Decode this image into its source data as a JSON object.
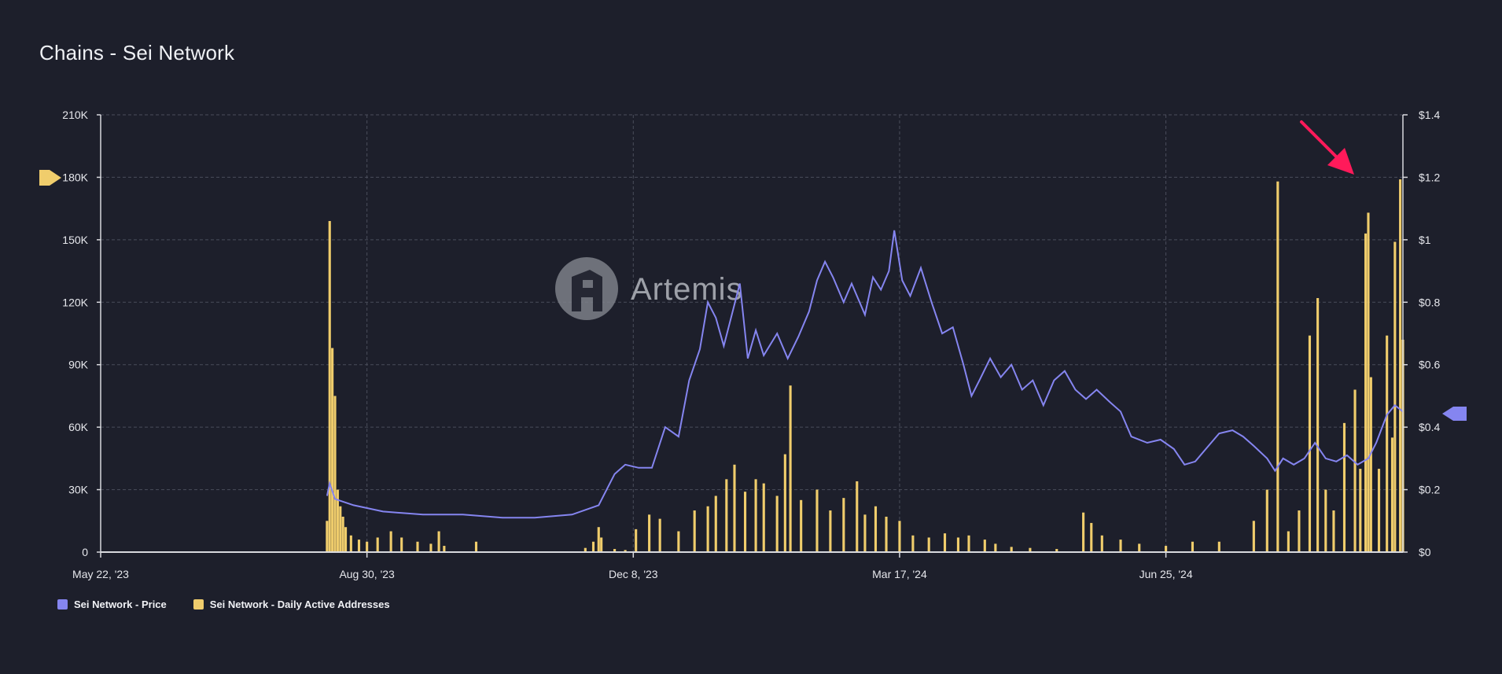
{
  "page": {
    "title": "Chains - Sei Network"
  },
  "colors": {
    "background": "#1d1f2b",
    "price_line": "#8585f0",
    "bars": "#f0cd6c",
    "grid": "#4a4d5b",
    "annotation_arrow": "#ff1a5a"
  },
  "watermark": {
    "text": "Artemis"
  },
  "legend": [
    {
      "label": "Sei Network - Price",
      "color": "#8585f0",
      "icon": "square-swatch"
    },
    {
      "label": "Sei Network - Daily Active Addresses",
      "color": "#f0cd6c",
      "icon": "square-swatch"
    }
  ],
  "chart_data": {
    "type": "bar",
    "title": "Chains - Sei Network",
    "x_axis": {
      "ticks": [
        "May 22, '23",
        "Aug 30, '23",
        "Dec 8, '23",
        "Mar 17, '24",
        "Jun 25, '24"
      ],
      "range": [
        "2023-05-22",
        "2024-09-22"
      ]
    },
    "y_left": {
      "ticks": [
        "0",
        "30K",
        "60K",
        "90K",
        "120K",
        "150K",
        "180K",
        "210K"
      ],
      "range": [
        0,
        210000
      ],
      "gridlines": true
    },
    "y_right": {
      "ticks": [
        "$0",
        "$0.2",
        "$0.4",
        "$0.6",
        "$0.8",
        "$1",
        "$1.2",
        "$1.4"
      ],
      "range": [
        0,
        1.4
      ]
    },
    "legend_position": "bottom-left",
    "series": [
      {
        "name": "Sei Network - Daily Active Addresses",
        "type": "bar",
        "axis": "left",
        "points": [
          [
            "2023-08-15",
            15000
          ],
          [
            "2023-08-16",
            159000
          ],
          [
            "2023-08-17",
            98000
          ],
          [
            "2023-08-18",
            75000
          ],
          [
            "2023-08-19",
            30000
          ],
          [
            "2023-08-20",
            22000
          ],
          [
            "2023-08-21",
            17000
          ],
          [
            "2023-08-22",
            12000
          ],
          [
            "2023-08-24",
            8000
          ],
          [
            "2023-08-27",
            6000
          ],
          [
            "2023-08-30",
            5000
          ],
          [
            "2023-09-03",
            7000
          ],
          [
            "2023-09-08",
            10000
          ],
          [
            "2023-09-12",
            7000
          ],
          [
            "2023-09-18",
            5000
          ],
          [
            "2023-09-23",
            4000
          ],
          [
            "2023-09-26",
            10000
          ],
          [
            "2023-09-28",
            3000
          ],
          [
            "2023-10-10",
            5000
          ],
          [
            "2023-11-20",
            2000
          ],
          [
            "2023-11-23",
            5000
          ],
          [
            "2023-11-25",
            12000
          ],
          [
            "2023-11-26",
            7000
          ],
          [
            "2023-12-01",
            1500
          ],
          [
            "2023-12-05",
            1000
          ],
          [
            "2023-12-09",
            11000
          ],
          [
            "2023-12-14",
            18000
          ],
          [
            "2023-12-18",
            16000
          ],
          [
            "2023-12-25",
            10000
          ],
          [
            "2023-12-31",
            20000
          ],
          [
            "2024-01-05",
            22000
          ],
          [
            "2024-01-08",
            27000
          ],
          [
            "2024-01-12",
            35000
          ],
          [
            "2024-01-15",
            42000
          ],
          [
            "2024-01-19",
            29000
          ],
          [
            "2024-01-23",
            35000
          ],
          [
            "2024-01-26",
            33000
          ],
          [
            "2024-01-31",
            27000
          ],
          [
            "2024-02-03",
            47000
          ],
          [
            "2024-02-05",
            80000
          ],
          [
            "2024-02-09",
            25000
          ],
          [
            "2024-02-15",
            30000
          ],
          [
            "2024-02-20",
            20000
          ],
          [
            "2024-02-25",
            26000
          ],
          [
            "2024-03-01",
            34000
          ],
          [
            "2024-03-04",
            18000
          ],
          [
            "2024-03-08",
            22000
          ],
          [
            "2024-03-12",
            17000
          ],
          [
            "2024-03-17",
            15000
          ],
          [
            "2024-03-22",
            8000
          ],
          [
            "2024-03-28",
            7000
          ],
          [
            "2024-04-03",
            9000
          ],
          [
            "2024-04-08",
            7000
          ],
          [
            "2024-04-12",
            8000
          ],
          [
            "2024-04-18",
            6000
          ],
          [
            "2024-04-22",
            4000
          ],
          [
            "2024-04-28",
            2500
          ],
          [
            "2024-05-05",
            2000
          ],
          [
            "2024-05-15",
            1500
          ],
          [
            "2024-05-25",
            19000
          ],
          [
            "2024-05-28",
            14000
          ],
          [
            "2024-06-01",
            8000
          ],
          [
            "2024-06-08",
            6000
          ],
          [
            "2024-06-15",
            4000
          ],
          [
            "2024-06-25",
            3000
          ],
          [
            "2024-07-05",
            5000
          ],
          [
            "2024-07-15",
            5000
          ],
          [
            "2024-07-28",
            15000
          ],
          [
            "2024-08-02",
            30000
          ],
          [
            "2024-08-06",
            178000
          ],
          [
            "2024-08-10",
            10000
          ],
          [
            "2024-08-14",
            20000
          ],
          [
            "2024-08-18",
            104000
          ],
          [
            "2024-08-21",
            122000
          ],
          [
            "2024-08-24",
            30000
          ],
          [
            "2024-08-27",
            20000
          ],
          [
            "2024-08-31",
            62000
          ],
          [
            "2024-09-04",
            78000
          ],
          [
            "2024-09-06",
            40000
          ],
          [
            "2024-09-08",
            153000
          ],
          [
            "2024-09-09",
            163000
          ],
          [
            "2024-09-10",
            84000
          ],
          [
            "2024-09-13",
            40000
          ],
          [
            "2024-09-16",
            104000
          ],
          [
            "2024-09-18",
            55000
          ],
          [
            "2024-09-19",
            149000
          ],
          [
            "2024-09-21",
            179000
          ],
          [
            "2024-09-22",
            102000
          ]
        ]
      },
      {
        "name": "Sei Network - Price",
        "type": "line",
        "axis": "right",
        "points": [
          [
            "2023-08-15",
            0.18
          ],
          [
            "2023-08-16",
            0.22
          ],
          [
            "2023-08-18",
            0.17
          ],
          [
            "2023-08-25",
            0.15
          ],
          [
            "2023-09-05",
            0.13
          ],
          [
            "2023-09-20",
            0.12
          ],
          [
            "2023-10-05",
            0.12
          ],
          [
            "2023-10-20",
            0.11
          ],
          [
            "2023-11-01",
            0.11
          ],
          [
            "2023-11-15",
            0.12
          ],
          [
            "2023-11-25",
            0.15
          ],
          [
            "2023-12-01",
            0.25
          ],
          [
            "2023-12-05",
            0.28
          ],
          [
            "2023-12-10",
            0.27
          ],
          [
            "2023-12-15",
            0.27
          ],
          [
            "2023-12-20",
            0.4
          ],
          [
            "2023-12-25",
            0.37
          ],
          [
            "2023-12-29",
            0.55
          ],
          [
            "2024-01-02",
            0.65
          ],
          [
            "2024-01-05",
            0.8
          ],
          [
            "2024-01-08",
            0.75
          ],
          [
            "2024-01-11",
            0.66
          ],
          [
            "2024-01-14",
            0.76
          ],
          [
            "2024-01-17",
            0.86
          ],
          [
            "2024-01-20",
            0.62
          ],
          [
            "2024-01-23",
            0.71
          ],
          [
            "2024-01-26",
            0.63
          ],
          [
            "2024-01-31",
            0.7
          ],
          [
            "2024-02-04",
            0.62
          ],
          [
            "2024-02-08",
            0.69
          ],
          [
            "2024-02-12",
            0.77
          ],
          [
            "2024-02-15",
            0.87
          ],
          [
            "2024-02-18",
            0.93
          ],
          [
            "2024-02-21",
            0.88
          ],
          [
            "2024-02-25",
            0.8
          ],
          [
            "2024-02-28",
            0.86
          ],
          [
            "2024-03-04",
            0.76
          ],
          [
            "2024-03-07",
            0.88
          ],
          [
            "2024-03-10",
            0.84
          ],
          [
            "2024-03-13",
            0.9
          ],
          [
            "2024-03-15",
            1.03
          ],
          [
            "2024-03-18",
            0.87
          ],
          [
            "2024-03-21",
            0.82
          ],
          [
            "2024-03-25",
            0.91
          ],
          [
            "2024-03-29",
            0.8
          ],
          [
            "2024-04-02",
            0.7
          ],
          [
            "2024-04-06",
            0.72
          ],
          [
            "2024-04-10",
            0.6
          ],
          [
            "2024-04-13",
            0.5
          ],
          [
            "2024-04-16",
            0.55
          ],
          [
            "2024-04-20",
            0.62
          ],
          [
            "2024-04-24",
            0.56
          ],
          [
            "2024-04-28",
            0.6
          ],
          [
            "2024-05-02",
            0.52
          ],
          [
            "2024-05-06",
            0.55
          ],
          [
            "2024-05-10",
            0.47
          ],
          [
            "2024-05-14",
            0.55
          ],
          [
            "2024-05-18",
            0.58
          ],
          [
            "2024-05-22",
            0.52
          ],
          [
            "2024-05-26",
            0.49
          ],
          [
            "2024-05-30",
            0.52
          ],
          [
            "2024-06-04",
            0.48
          ],
          [
            "2024-06-08",
            0.45
          ],
          [
            "2024-06-12",
            0.37
          ],
          [
            "2024-06-18",
            0.35
          ],
          [
            "2024-06-23",
            0.36
          ],
          [
            "2024-06-28",
            0.33
          ],
          [
            "2024-07-02",
            0.28
          ],
          [
            "2024-07-06",
            0.29
          ],
          [
            "2024-07-10",
            0.33
          ],
          [
            "2024-07-15",
            0.38
          ],
          [
            "2024-07-20",
            0.39
          ],
          [
            "2024-07-24",
            0.37
          ],
          [
            "2024-07-28",
            0.34
          ],
          [
            "2024-08-02",
            0.3
          ],
          [
            "2024-08-05",
            0.26
          ],
          [
            "2024-08-08",
            0.3
          ],
          [
            "2024-08-12",
            0.28
          ],
          [
            "2024-08-16",
            0.3
          ],
          [
            "2024-08-20",
            0.35
          ],
          [
            "2024-08-24",
            0.3
          ],
          [
            "2024-08-28",
            0.29
          ],
          [
            "2024-09-01",
            0.31
          ],
          [
            "2024-09-05",
            0.28
          ],
          [
            "2024-09-09",
            0.3
          ],
          [
            "2024-09-12",
            0.35
          ],
          [
            "2024-09-16",
            0.44
          ],
          [
            "2024-09-19",
            0.47
          ],
          [
            "2024-09-22",
            0.45
          ]
        ]
      }
    ]
  }
}
